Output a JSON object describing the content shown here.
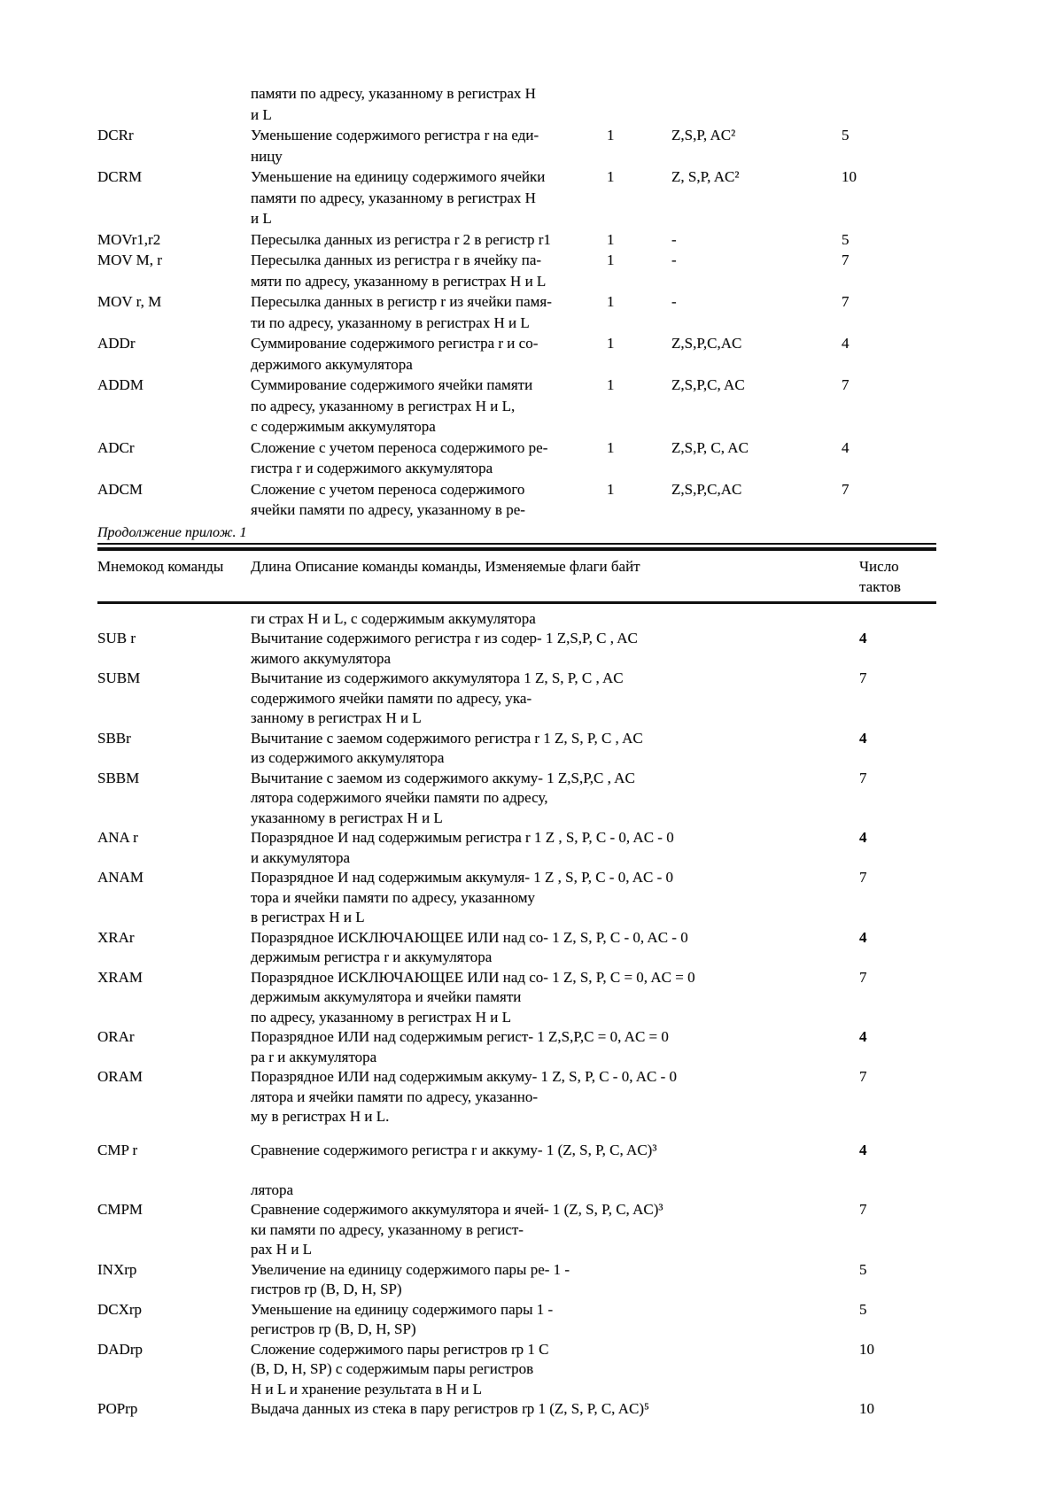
{
  "caption": "Продолжение прилож. 1",
  "table1": {
    "rows": [
      {
        "mnemonic": "",
        "desc": [
          "памяти по адресу, указанному в регистрах H",
          "и L"
        ],
        "len": "",
        "flags": "",
        "cycles": ""
      },
      {
        "mnemonic": "DCRr",
        "desc": [
          "Уменьшение содержимого регистра r на еди-",
          "ницу"
        ],
        "len": "1",
        "flags": "Z,S,P, AC²",
        "cycles": "5"
      },
      {
        "mnemonic": "DCRM",
        "desc": [
          "Уменьшение на единицу содержимого ячейки",
          "памяти по адресу, указанному в регистрах H",
          "и L"
        ],
        "len": "1",
        "flags": "Z, S,P, AC²",
        "cycles": "10"
      },
      {
        "mnemonic": "MOVr1,r2",
        "desc": [
          "Пересылка данных из регистра r 2 в регистр r1"
        ],
        "len": "1",
        "flags": "-",
        "cycles": "5"
      },
      {
        "mnemonic": "MOV M, r",
        "desc": [
          "Пересылка данных из регистра r в ячейку па-",
          "мяти по адресу, указанному в регистрах H и L"
        ],
        "len": "1",
        "flags": "-",
        "cycles": "7"
      },
      {
        "mnemonic": "MOV r, M",
        "desc": [
          "Пересылка данных в регистр r из ячейки памя-",
          "ти по адресу, указанному в регистрах H и L"
        ],
        "len": "1",
        "flags": "-",
        "cycles": "7"
      },
      {
        "mnemonic": "ADDr",
        "desc": [
          "Суммирование содержимого регистра r и со-",
          "держимого аккумулятора"
        ],
        "len": "1",
        "flags": "Z,S,P,C,AC",
        "cycles": "4"
      },
      {
        "mnemonic": "ADDM",
        "desc": [
          "Суммирование содержимого ячейки памяти",
          "по адресу, указанному в регистрах H и L,",
          "с содержимым аккумулятора"
        ],
        "len": "1",
        "flags": "Z,S,P,C, AC",
        "cycles": "7"
      },
      {
        "mnemonic": "ADCr",
        "desc": [
          "Сложение с учетом переноса содержимого ре-",
          "гистра r и содержимого аккумулятора"
        ],
        "len": "1",
        "flags": "Z,S,P, C, AC",
        "cycles": "4"
      },
      {
        "mnemonic": "ADCM",
        "desc": [
          "Сложение с учетом переноса содержимого",
          "ячейки памяти по адресу, указанному в ре-"
        ],
        "len": "1",
        "flags": "Z,S,P,C,AC",
        "cycles": "7"
      }
    ]
  },
  "table2": {
    "header": {
      "mnemonic": "Мнемокод команды",
      "description": "Длина Описание команды команды, Изменяемые флаги байт",
      "cycles_line1": "Число",
      "cycles_line2": "тактов"
    },
    "rows": [
      {
        "mnemonic": "",
        "desc": [
          "ги страх H и L, с содержимым аккумулятора"
        ],
        "cycles": ""
      },
      {
        "mnemonic": "SUB r",
        "desc": [
          "Вычитание содержимого регистра r из содер- 1 Z,S,P, C , AC",
          "жимого аккумулятора"
        ],
        "cycles": "4",
        "bold": true
      },
      {
        "mnemonic": "SUBM",
        "desc": [
          "Вычитание из содержимого аккумулятора 1 Z, S, P, C , AC",
          "содержимого ячейки памяти по адресу, ука-",
          "занному в регистрах H и L"
        ],
        "cycles": "7"
      },
      {
        "mnemonic": "SBBr",
        "desc": [
          "Вычитание с заемом содержимого регистра r 1 Z, S, P, C , AC",
          "из содержимого аккумулятора"
        ],
        "cycles": "4",
        "bold": true
      },
      {
        "mnemonic": "SBBM",
        "desc": [
          "Вычитание с заемом из содержимого аккуму- 1 Z,S,P,C , AC",
          "лятора содержимого ячейки памяти по адресу,",
          "указанному в регистрах H и L"
        ],
        "cycles": "7"
      },
      {
        "mnemonic": "ANA r",
        "desc": [
          "Поразрядное И над содержимым регистра r 1 Z , S, P, C - 0, AC - 0",
          "и аккумулятора"
        ],
        "cycles": "4",
        "bold": true
      },
      {
        "mnemonic": "ANAM",
        "desc": [
          "Поразрядное И над содержимым аккумуля- 1 Z , S, P, C - 0, AC - 0",
          "тора и ячейки памяти по адресу, указанному",
          "в регистрах H и L"
        ],
        "cycles": "7"
      },
      {
        "mnemonic": "XRAr",
        "desc": [
          "Поразрядное ИСКЛЮЧАЮЩЕЕ ИЛИ над со- 1 Z, S, P, C - 0, AC - 0",
          "держимым регистра r и аккумулятора"
        ],
        "cycles": "4",
        "bold": true
      },
      {
        "mnemonic": "XRAM",
        "desc": [
          "Поразрядное ИСКЛЮЧАЮЩЕЕ ИЛИ над со- 1 Z, S, P, C = 0, AC = 0",
          "держимым аккумулятора и ячейки памяти",
          "по адресу, указанному в регистрах H и L"
        ],
        "cycles": "7"
      },
      {
        "mnemonic": "ORAr",
        "desc": [
          "Поразрядное ИЛИ над содержимым регист- 1 Z,S,P,C = 0, AC = 0",
          "ра r и аккумулятора"
        ],
        "cycles": "4",
        "bold": true
      },
      {
        "mnemonic": "ORAM",
        "desc": [
          "Поразрядное ИЛИ над содержимым аккуму- 1 Z, S, P, C - 0, AC - 0",
          "лятора и ячейки памяти по адресу, указанно-",
          "му в регистрах H и L."
        ],
        "cycles": "7"
      },
      {
        "mnemonic": "CMP r",
        "gap_before": true,
        "desc": [
          "Сравнение содержимого регистра r и аккуму- 1 (Z, S, P, C, AC)³",
          "",
          "лятора"
        ],
        "cycles": "4",
        "bold": true
      },
      {
        "mnemonic": "CMPM",
        "desc": [
          "Сравнение содержимого аккумулятора и ячей- 1 (Z, S, P, C, AC)³",
          "ки памяти по адресу, указанному в регист-",
          "рах H и L"
        ],
        "cycles": "7"
      },
      {
        "mnemonic": "INXrp",
        "desc": [
          "Увеличение на единицу содержимого пары ре- 1 -",
          "гистров rp (B, D, H, SP)"
        ],
        "cycles": "5"
      },
      {
        "mnemonic": "DCXrp",
        "desc": [
          "Уменьшение на единицу содержимого пары 1 -",
          "регистров rp (B, D, H, SP)"
        ],
        "cycles": "5"
      },
      {
        "mnemonic": "DADrp",
        "desc": [
          "Сложение содержимого пары регистров rp 1 C",
          "(B, D, H, SP) с содержимым пары регистров",
          "H и L и хранение результата в H и L"
        ],
        "cycles": "10"
      },
      {
        "mnemonic": "POPrp",
        "desc": [
          "Выдача данных из стека в пару регистров rp 1 (Z, S, P, C, AC)⁵"
        ],
        "cycles": "10"
      }
    ]
  }
}
